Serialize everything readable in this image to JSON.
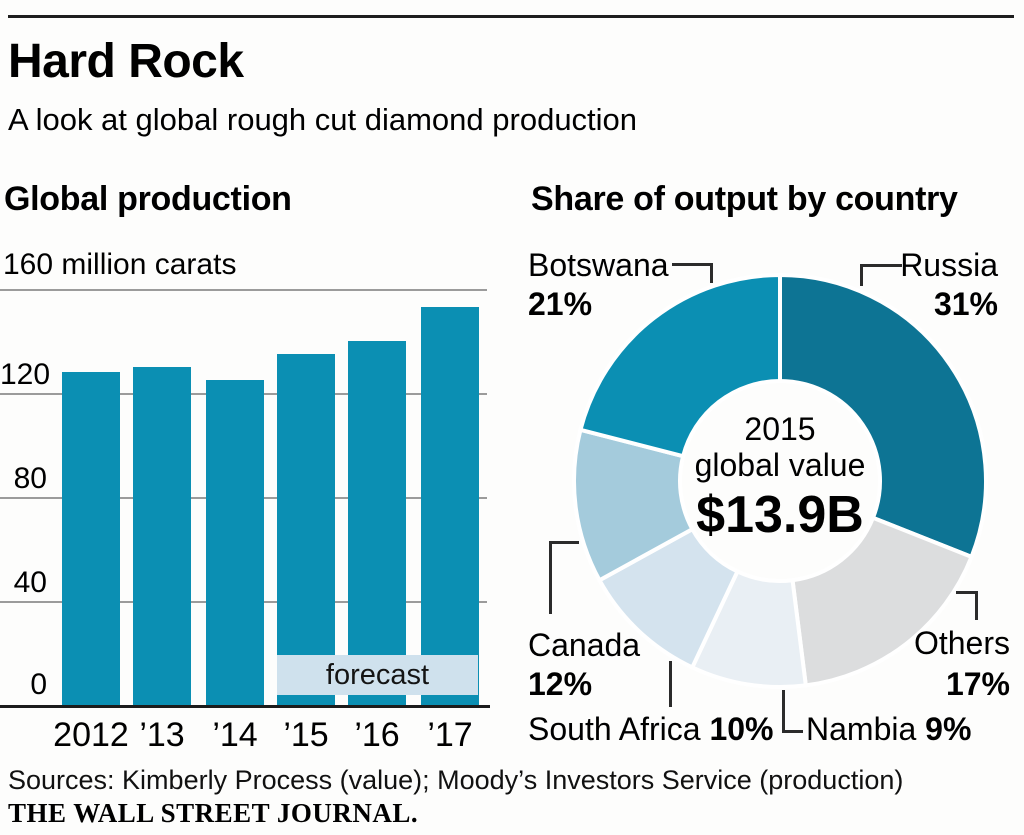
{
  "header": {
    "title": "Hard Rock",
    "subtitle": "A look at global rough cut diamond production"
  },
  "bar_chart": {
    "heading": "Global production",
    "unit_label": "160 million carats",
    "forecast_label": "forecast"
  },
  "donut_chart": {
    "heading": "Share of output by country",
    "center_line1": "2015",
    "center_line2": "global value",
    "center_value": "$13.9B"
  },
  "footer": {
    "sources": "Sources: Kimberly Process (value); Moody’s Investors Service (production)",
    "brand": "THE WALL STREET JOURNAL."
  },
  "chart_data": [
    {
      "type": "bar",
      "title": "Global production",
      "ylabel": "million carats",
      "categories": [
        "2012",
        "’13",
        "’14",
        "’15",
        "’16",
        "’17"
      ],
      "values": [
        128,
        130,
        125,
        135,
        140,
        153
      ],
      "forecast_categories": [
        "’15",
        "’16",
        "’17"
      ],
      "forecast_note": "forecast",
      "ylim": [
        0,
        160
      ],
      "yticks": [
        0,
        40,
        80,
        120,
        160
      ],
      "ytick_labels_top_to_bottom": [
        "120",
        "80",
        "40",
        "0"
      ],
      "grid": true,
      "legend_position": "none",
      "bar_color": "#0b8fb3",
      "forecast_band_color": "#cfe1ed"
    },
    {
      "type": "pie",
      "title": "Share of output by country",
      "donut": true,
      "center_label": "2015 global value $13.9B",
      "start_angle_deg": 0,
      "direction": "clockwise",
      "inner_radius_ratio": 0.48,
      "slices": [
        {
          "label": "Russia",
          "value": 31,
          "pct_label": "31%",
          "color": "#0d7494"
        },
        {
          "label": "Others",
          "value": 17,
          "pct_label": "17%",
          "color": "#dcddde"
        },
        {
          "label": "Nambia",
          "value": 9,
          "pct_label": "9%",
          "color": "#e9eff4"
        },
        {
          "label": "South Africa",
          "value": 10,
          "pct_label": "10%",
          "color": "#d4e3ee"
        },
        {
          "label": "Canada",
          "value": 12,
          "pct_label": "12%",
          "color": "#a4cbdc"
        },
        {
          "label": "Botswana",
          "value": 21,
          "pct_label": "21%",
          "color": "#0b8fb3"
        }
      ]
    }
  ]
}
